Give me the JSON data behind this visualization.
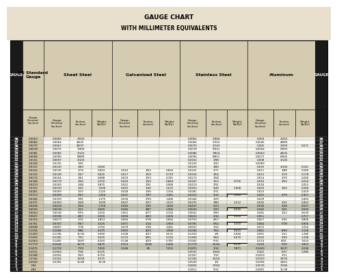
{
  "title": "GAUGE CHART",
  "subtitle": "WITH MILLIMETER EQUIVALENTS",
  "title_bg": "#e8e0cc",
  "header_bg": "#d4cbb0",
  "row_odd_bg": "#eeeade",
  "row_even_bg": "#ffffff",
  "highlight_color": "#c8c8b8",
  "highlight_border": "#000000",
  "dark_col_bg": "#1a1a1a",
  "dark_col_fg": "#ffffff",
  "us_std_bg": "#d4cbb0",
  "border_color": "#888888",
  "outer_border": "#000000",
  "gauges": [
    38,
    37,
    36,
    35,
    34,
    33,
    32,
    31,
    30,
    29,
    28,
    27,
    26,
    25,
    24,
    23,
    22,
    21,
    20,
    19,
    18,
    17,
    16,
    15,
    14,
    13,
    12,
    11,
    10,
    9,
    8,
    7,
    6,
    5,
    4,
    3,
    2,
    1
  ],
  "us_standard": [
    "0.0063",
    "0.0066",
    "0.0070",
    "0.0078",
    "0.0086",
    "0.0094",
    "0.0102",
    "0.0109",
    "0.0125",
    "0.0141",
    "0.0156",
    "0.0172",
    "0.0188",
    "0.0219",
    "0.0250",
    "0.0281",
    "0.0313",
    "0.0344",
    "0.0375",
    "0.0438",
    "0.0500",
    "0.0563",
    "0.0625",
    "0.0703",
    "0.0781",
    "0.0938",
    "0.1094",
    "0.1250",
    "0.1406",
    "0.1563",
    "0.1719",
    "0.1875",
    "0.2031",
    "0.2188",
    "0.2344",
    "0.2500",
    ".266",
    ".281"
  ],
  "sheet_dec": [
    "0.0060",
    "0.0064",
    "0.0067",
    "0.0075",
    "0.0082",
    "0.0090",
    "0.0097",
    "0.0105",
    "0.0120",
    "0.0135",
    "0.0149",
    "0.0164",
    "0.0179",
    "0.0209",
    "0.0239",
    "0.0269",
    "0.0299",
    "0.0329",
    "0.0359",
    "0.0418",
    "0.0478",
    "0.0538",
    "0.0598",
    "0.0673",
    "0.0747",
    "0.0897",
    "0.1046",
    "0.1196",
    "0.1345",
    "0.1495",
    "0.1644",
    "0.1793",
    "0.1943",
    "0.2092",
    "0.2242",
    "0.2391",
    "",
    ""
  ],
  "sheet_frac": [
    "3/500",
    "4/625",
    "4/597",
    "3/400",
    "1/122",
    "8/889",
    "1/103",
    "1/95",
    "1/83",
    "1/74",
    "1/67",
    "1/61",
    "1/56",
    "1/48",
    "1/42",
    "1/37",
    "2/67",
    "3/91",
    "1/28",
    "1/24",
    "1/21",
    "5/93",
    "4/67",
    "1/15",
    "5/67",
    "7/78",
    "9/86",
    "11/92",
    "7/52",
    "13/87",
    "12/73",
    "7/39",
    "7/36",
    "9/43",
    "13/58",
    "11/46",
    "",
    ""
  ],
  "sheet_wt": [
    "",
    "",
    "",
    "",
    "",
    "",
    "",
    "",
    "0.500",
    "0.563",
    "0.625",
    "0.688",
    "0.750",
    "0.875",
    "1.000",
    "1.125",
    "1.250",
    "1.375",
    "1.500",
    "1.750",
    "2.000",
    "2.250",
    "2.500",
    "2.813",
    "3.125",
    "3.750",
    "4.375",
    "5.000",
    "5.625",
    "6.250",
    "6.875",
    "7.500",
    "8.125",
    "8.750",
    "9.375",
    "10.00",
    "",
    ""
  ],
  "galv_dec": [
    "",
    "",
    "",
    "",
    "",
    "",
    "",
    "",
    "",
    "0.016",
    "0.017",
    "0.019",
    "0.020",
    "0.022",
    "0.025",
    "0.028",
    "0.031",
    "0.034",
    "0.037",
    "0.040",
    "0.046",
    "0.052",
    "0.058",
    "0.064",
    "0.071",
    "0.079",
    "0.093",
    "0.108",
    "0.123",
    "0.138",
    "0.153",
    "0.168",
    "",
    "",
    "",
    "",
    "",
    ""
  ],
  "galv_frac": [
    "",
    "",
    "",
    "",
    "",
    "",
    "",
    "",
    "",
    "1/62",
    "1/59",
    "1/53",
    "1/50",
    "2/91",
    "1/40",
    "1/36",
    "3/97",
    "2/59",
    "1/27",
    "1/25",
    "4/87",
    "4/77",
    "4/69",
    "5/78",
    "1/14",
    "3/38",
    "4/43",
    "4/37",
    "8/65",
    "4/29",
    "13/85",
    "1/6",
    "",
    "",
    "",
    "",
    "",
    ""
  ],
  "galv_wt": [
    "",
    "",
    "",
    "",
    "",
    "",
    "",
    "",
    "",
    "0.656",
    "0.719",
    "0.781",
    "0.844",
    "0.906",
    "1.031",
    "1.156",
    "1.281",
    "1.406",
    "1.531",
    "1.656",
    "1.906",
    "2.156",
    "2.406",
    "2.656",
    "2.969",
    "3.281",
    "3.906",
    "4.531",
    "5.156",
    "5.781",
    "6.406",
    "7.031",
    "",
    "",
    "",
    "",
    "",
    ""
  ],
  "ss_dec": [
    "0.0062",
    "0.0066",
    "0.0070",
    "0.0078",
    "0.0086",
    "0.0094",
    "0.0102",
    "0.0109",
    "0.0125",
    "0.0141",
    "0.0156",
    "0.0172",
    "0.0187",
    "0.0219",
    "0.0250",
    "0.0281",
    "0.0312",
    "0.0344",
    "0.0375",
    "0.0437",
    "0.0500",
    "0.0562",
    "0.0625",
    "0.0703",
    "0.0781",
    "0.0937",
    "0.1094",
    "0.1250",
    "0.1406",
    "0.1562",
    "0.1719",
    "0.1875",
    "0.2031",
    "0.2187",
    "0.2344",
    "0.2500",
    "0.2656",
    "0.2812"
  ],
  "ss_frac": [
    "3/484",
    "2/303",
    "1/143",
    "5/641",
    "7/814",
    "8/851",
    "1/98",
    "1/92",
    "1/80",
    "1/71",
    "1/64",
    "1/58",
    "1/53",
    "2/91",
    "1/40",
    "2/71",
    "1/32",
    "1/29",
    "3/80",
    "1/23",
    "1/20",
    "5/89",
    "1/16",
    "4/57",
    "5/64",
    "3/32",
    "7/64",
    "1/8",
    "9/64",
    "5/32",
    "11/64",
    "3/16",
    "13/64",
    "7/32",
    "15/64",
    "1/4",
    "17/64",
    "9/32"
  ],
  "ss_wt": [
    "",
    "",
    "",
    "",
    "",
    "",
    "",
    "",
    "",
    "",
    "",
    "",
    "0.756",
    "",
    "1.008",
    "",
    "1.260",
    "",
    "1.512",
    "",
    "2.016",
    "",
    "2.520",
    "",
    "3.150",
    "",
    "4.410",
    "5.040",
    "5.670",
    "",
    "6.930",
    "7.871",
    "",
    "",
    "",
    "",
    "",
    ""
  ],
  "al_dec": [
    "0.004",
    "0.0045",
    "0.005",
    "0.0056",
    "0.0063",
    "0.0071",
    "0.008",
    "0.0089",
    "0.010",
    "0.011",
    "0.013",
    "0.014",
    "0.016",
    "0.018",
    "0.020",
    "0.023",
    "0.025",
    "0.029",
    "0.032",
    "0.036",
    "0.040",
    "0.045",
    "0.051",
    "0.057",
    "0.064",
    "0.072",
    "0.081",
    "0.091",
    "0.102",
    "0.114",
    "0.129",
    "0.1443",
    "0.162",
    "0.1819",
    "0.2043",
    "0.2294",
    "0.2576",
    "0.2891"
  ],
  "al_frac": [
    "1/250",
    "4/889",
    "1/200",
    "5/893",
    "4/635",
    "6/845",
    "1/125",
    "",
    "1/100",
    "1/88",
    "1/79",
    "1/70",
    "1/63",
    "",
    "1/50",
    "",
    "2/79",
    "",
    "1/31",
    "1/28",
    "1/25",
    "1/22",
    "",
    "2/35",
    "5/78",
    "",
    "8/99",
    "1/11",
    "5/49",
    "4/35",
    "9/70",
    "14/97",
    "6/37",
    "2/11",
    "19/93",
    "14/61",
    "17/66",
    "11/38"
  ],
  "al_wt": [
    "",
    "",
    "0.071",
    "",
    "",
    "",
    "",
    "",
    "0.141",
    "0.160",
    "0.178",
    "0.200",
    "0.224",
    "0.253",
    "0.284",
    "0.319",
    "0.357",
    "0.402",
    "0.452",
    "0.507",
    "0.569",
    "0.639",
    "0.717",
    "0.806",
    "0.905",
    "1.016",
    "1.140",
    "1.280",
    "1.438",
    "1.614",
    "1.813",
    "2.036",
    "2.286",
    "",
    "",
    "",
    "",
    ""
  ],
  "highlight_gauges": [
    22,
    19,
    18,
    16,
    14,
    12,
    8,
    7
  ],
  "boxed_rows": [
    22,
    19,
    18,
    16,
    14,
    12,
    8
  ]
}
